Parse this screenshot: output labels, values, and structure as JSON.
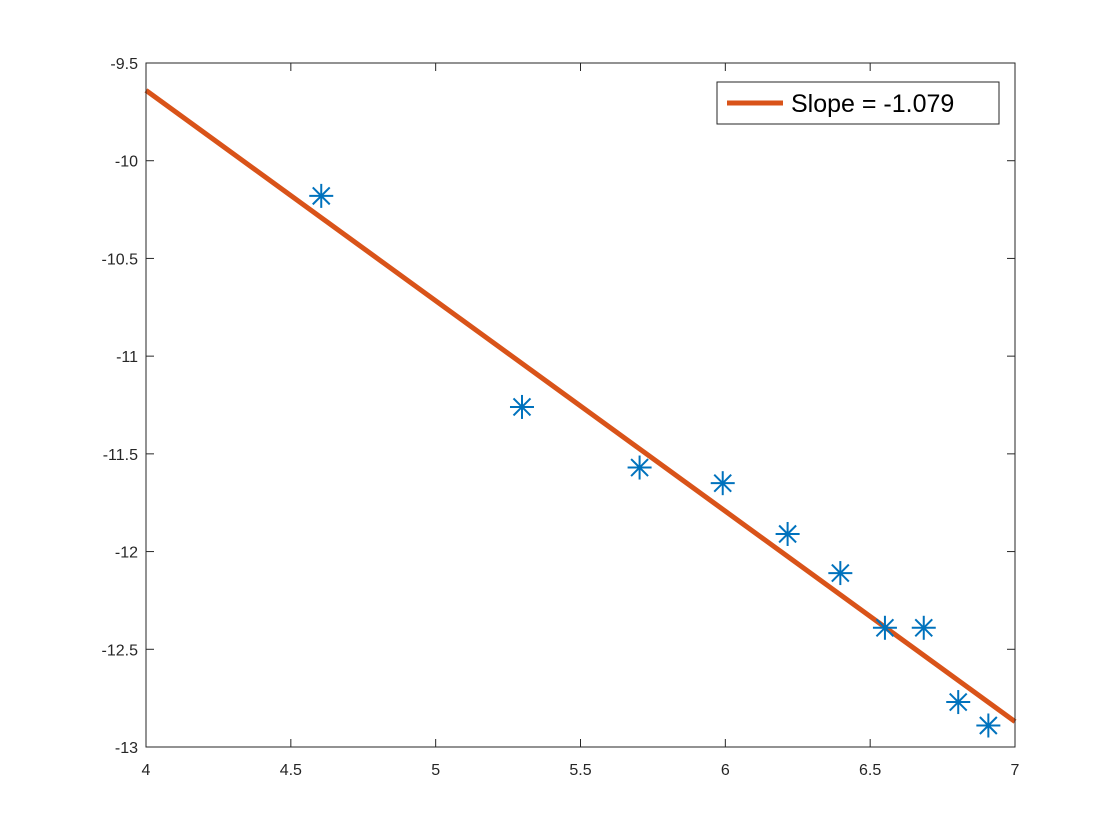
{
  "chart_data": {
    "type": "scatter",
    "xlim": [
      4,
      7
    ],
    "ylim": [
      -13,
      -9.5
    ],
    "xticks": [
      4,
      4.5,
      5,
      5.5,
      6,
      6.5,
      7
    ],
    "yticks": [
      -9.5,
      -10,
      -10.5,
      -11,
      -11.5,
      -12,
      -12.5,
      -13
    ],
    "xtick_labels": [
      "4",
      "4.5",
      "5",
      "5.5",
      "6",
      "6.5",
      "7"
    ],
    "ytick_labels": [
      "-9.5",
      "-10",
      "-10.5",
      "-11",
      "-11.5",
      "-12",
      "-12.5",
      "-13"
    ],
    "grid": false,
    "legend_position": "top-right",
    "series": [
      {
        "marker": "asterisk",
        "color": "#0072BD",
        "points": [
          {
            "x": 4.605,
            "y": -10.18
          },
          {
            "x": 5.298,
            "y": -11.26
          },
          {
            "x": 5.704,
            "y": -11.57
          },
          {
            "x": 5.991,
            "y": -11.65
          },
          {
            "x": 6.215,
            "y": -11.91
          },
          {
            "x": 6.397,
            "y": -12.11
          },
          {
            "x": 6.551,
            "y": -12.39
          },
          {
            "x": 6.685,
            "y": -12.39
          },
          {
            "x": 6.804,
            "y": -12.77
          },
          {
            "x": 6.908,
            "y": -12.89
          }
        ]
      },
      {
        "name": "Slope = -1.079",
        "type": "line",
        "color": "#D95319",
        "points": [
          {
            "x": 4,
            "y": -9.64
          },
          {
            "x": 7,
            "y": -12.87
          }
        ]
      }
    ]
  }
}
